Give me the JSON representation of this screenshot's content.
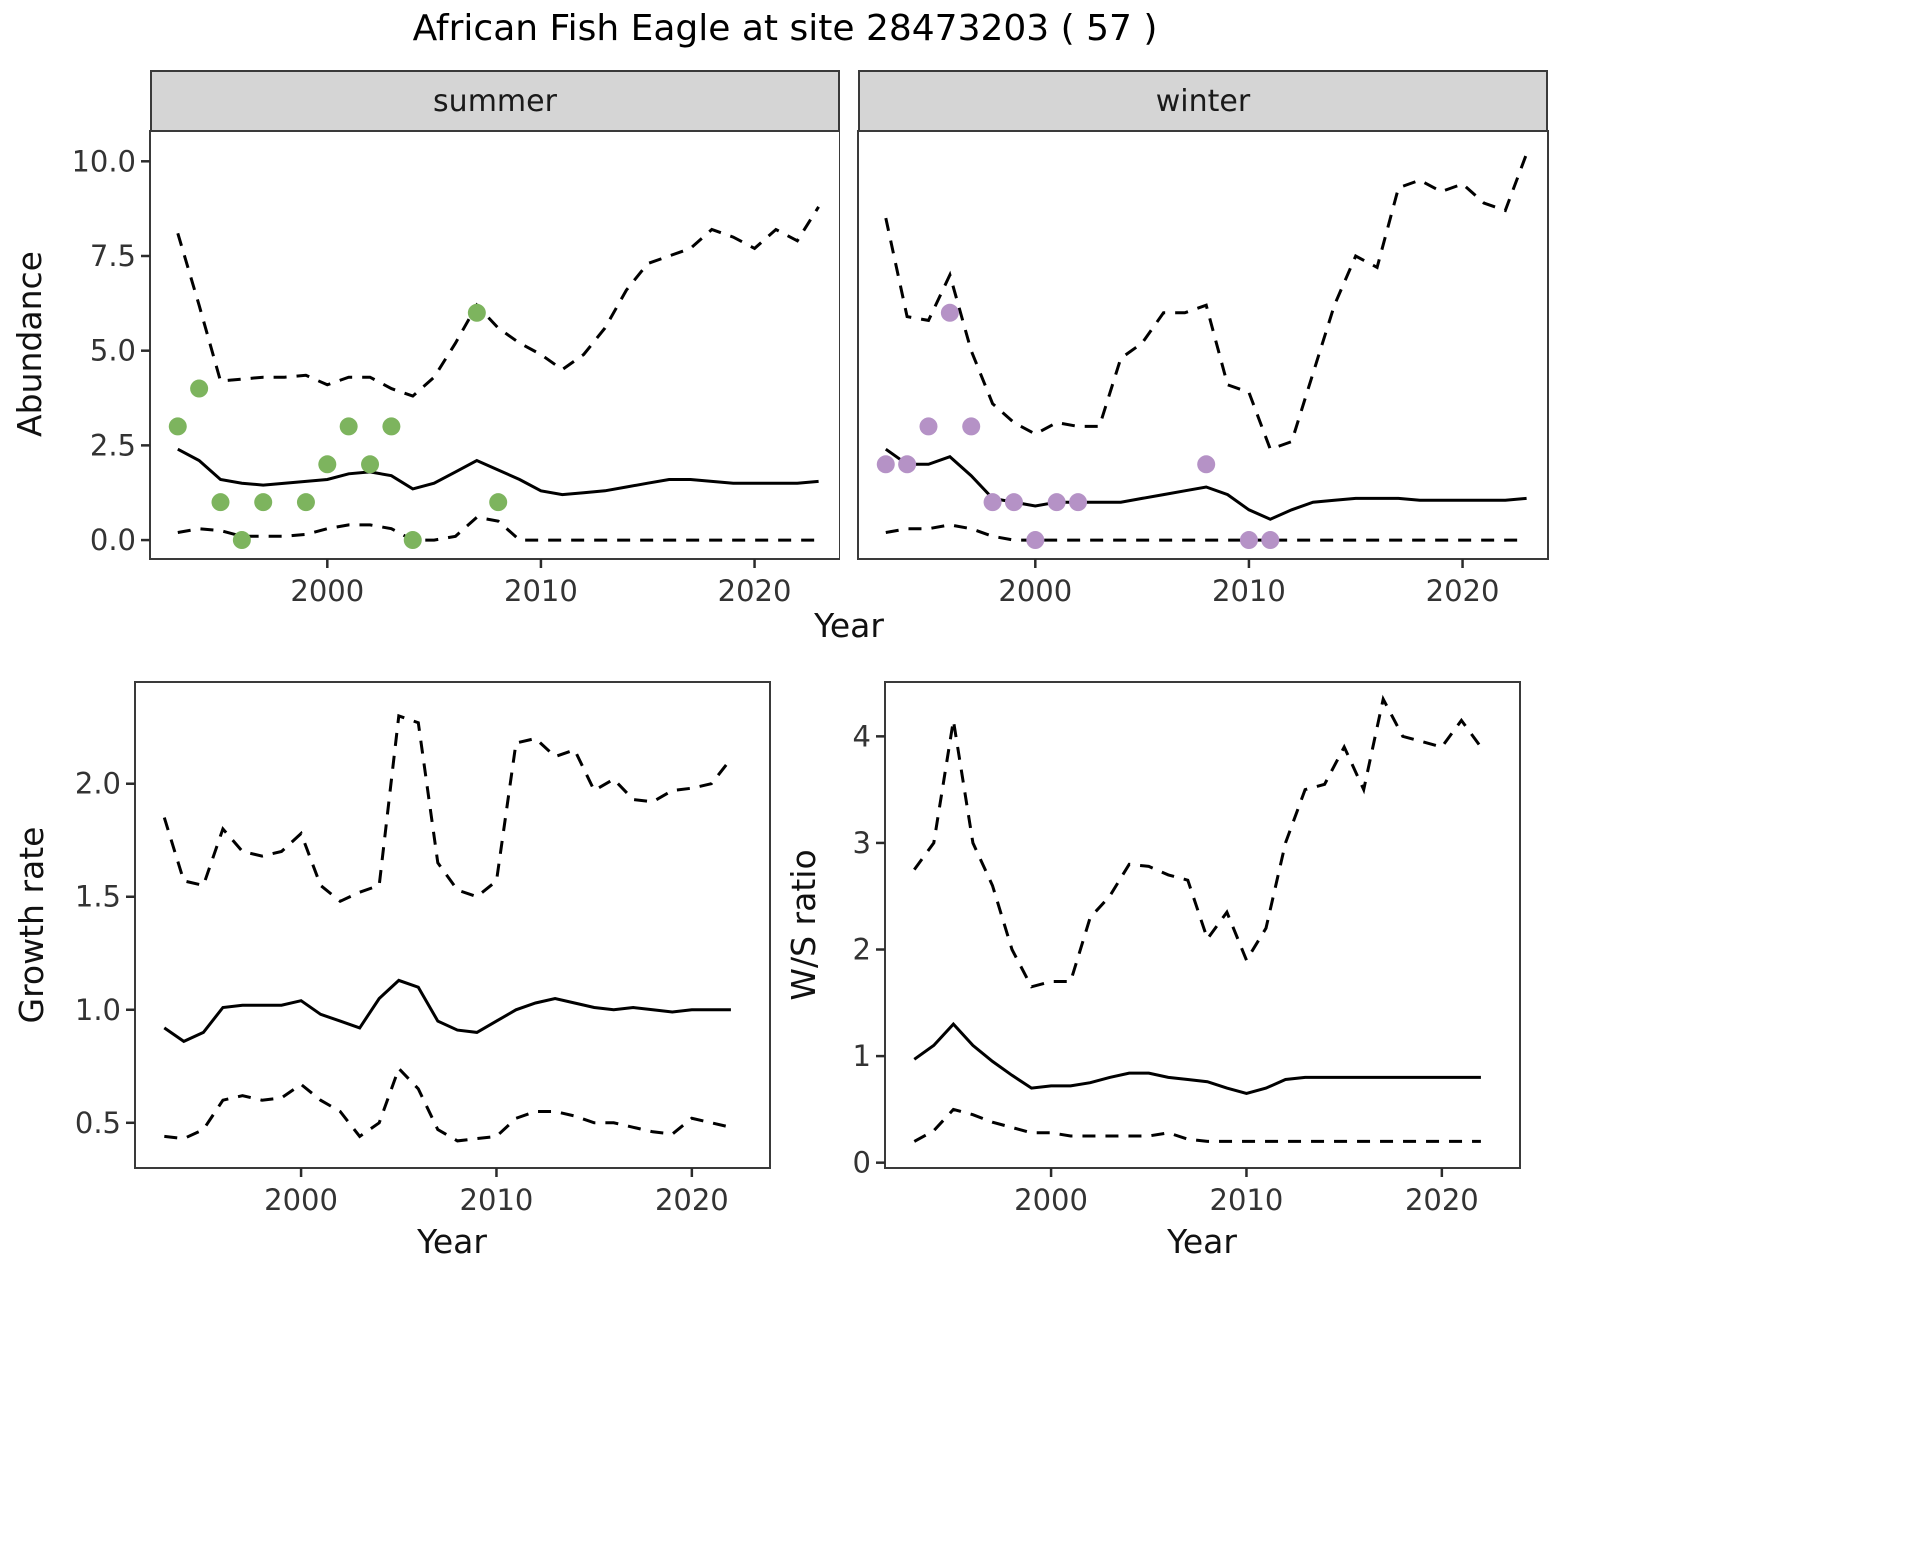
{
  "title": "African Fish Eagle at site 28473203 ( 57 )",
  "facets": {
    "summer": "summer",
    "winter": "winter"
  },
  "axes": {
    "top_x_label": "Year",
    "bottom_left_x_label": "Year",
    "bottom_right_x_label": "Year",
    "abundance_label": "Abundance",
    "growth_label": "Growth rate",
    "ws_label": "W/S ratio"
  },
  "colors": {
    "summer_points": "#7db45e",
    "winter_points": "#b592c6",
    "line": "#000000",
    "strip_bg": "#d5d5d5",
    "panel_border": "#3a3a3a",
    "tick_text": "#333333"
  },
  "chart_data": [
    {
      "id": "abundance_summer",
      "type": "line",
      "facet": "summer",
      "xlabel": "Year",
      "ylabel": "Abundance",
      "xlim": [
        1991.7,
        2024
      ],
      "ylim": [
        -0.5,
        10.8
      ],
      "x_ticks": [
        2000,
        2010,
        2020
      ],
      "x_tick_labels": [
        "2000",
        "2010",
        "2020"
      ],
      "y_ticks": [
        0,
        2.5,
        5,
        7.5,
        10
      ],
      "y_tick_labels": [
        "0.0",
        "2.5",
        "5.0",
        "7.5",
        "10.0"
      ],
      "show_y_tick_labels": true,
      "x": [
        1993,
        1994,
        1995,
        1996,
        1997,
        1998,
        1999,
        2000,
        2001,
        2002,
        2003,
        2004,
        2005,
        2006,
        2007,
        2008,
        2009,
        2010,
        2011,
        2012,
        2013,
        2014,
        2015,
        2016,
        2017,
        2018,
        2019,
        2020,
        2021,
        2022,
        2023
      ],
      "series": [
        {
          "name": "median",
          "style": "solid",
          "values": [
            2.4,
            2.1,
            1.6,
            1.5,
            1.45,
            1.5,
            1.55,
            1.6,
            1.75,
            1.8,
            1.7,
            1.35,
            1.5,
            1.8,
            2.1,
            1.85,
            1.6,
            1.3,
            1.2,
            1.25,
            1.3,
            1.4,
            1.5,
            1.6,
            1.6,
            1.55,
            1.5,
            1.5,
            1.5,
            1.5,
            1.55
          ]
        },
        {
          "name": "upper_ci",
          "style": "dashed",
          "values": [
            8.1,
            6.2,
            4.2,
            4.25,
            4.3,
            4.3,
            4.35,
            4.1,
            4.3,
            4.3,
            4.0,
            3.8,
            4.3,
            5.2,
            6.2,
            5.6,
            5.2,
            4.9,
            4.5,
            4.9,
            5.6,
            6.6,
            7.3,
            7.5,
            7.7,
            8.2,
            8.0,
            7.7,
            8.2,
            7.9,
            8.8
          ]
        },
        {
          "name": "lower_ci",
          "style": "dashed",
          "values": [
            0.2,
            0.3,
            0.25,
            0.1,
            0.1,
            0.1,
            0.15,
            0.3,
            0.4,
            0.4,
            0.3,
            0.0,
            0.0,
            0.1,
            0.6,
            0.5,
            0.0,
            0.0,
            0.0,
            0.0,
            0.0,
            0.0,
            0.0,
            0.0,
            0.0,
            0.0,
            0.0,
            0.0,
            0.0,
            0.0,
            0.0
          ]
        }
      ],
      "points": {
        "x": [
          1993,
          1994,
          1995,
          1996,
          1997,
          1999,
          2000,
          2001,
          2002,
          2003,
          2004,
          2007,
          2008
        ],
        "y": [
          3,
          4,
          1,
          0,
          1,
          1,
          2,
          3,
          2,
          3,
          0,
          6,
          1
        ],
        "color": "#7db45e"
      }
    },
    {
      "id": "abundance_winter",
      "type": "line",
      "facet": "winter",
      "xlabel": "Year",
      "ylabel": "Abundance",
      "xlim": [
        1991.7,
        2024
      ],
      "ylim": [
        -0.5,
        10.8
      ],
      "x_ticks": [
        2000,
        2010,
        2020
      ],
      "x_tick_labels": [
        "2000",
        "2010",
        "2020"
      ],
      "y_ticks": [
        0,
        2.5,
        5,
        7.5,
        10
      ],
      "y_tick_labels": [
        "0.0",
        "2.5",
        "5.0",
        "7.5",
        "10.0"
      ],
      "show_y_tick_labels": false,
      "x": [
        1993,
        1994,
        1995,
        1996,
        1997,
        1998,
        1999,
        2000,
        2001,
        2002,
        2003,
        2004,
        2005,
        2006,
        2007,
        2008,
        2009,
        2010,
        2011,
        2012,
        2013,
        2014,
        2015,
        2016,
        2017,
        2018,
        2019,
        2020,
        2021,
        2022,
        2023
      ],
      "series": [
        {
          "name": "median",
          "style": "solid",
          "values": [
            2.4,
            2.0,
            2.0,
            2.2,
            1.7,
            1.1,
            1.0,
            0.9,
            1.0,
            1.0,
            1.0,
            1.0,
            1.1,
            1.2,
            1.3,
            1.4,
            1.2,
            0.8,
            0.55,
            0.8,
            1.0,
            1.05,
            1.1,
            1.1,
            1.1,
            1.05,
            1.05,
            1.05,
            1.05,
            1.05,
            1.1
          ]
        },
        {
          "name": "upper_ci",
          "style": "dashed",
          "values": [
            8.5,
            5.9,
            5.8,
            7.0,
            5.0,
            3.6,
            3.1,
            2.8,
            3.1,
            3.0,
            3.0,
            4.8,
            5.2,
            6.0,
            6.0,
            6.2,
            4.1,
            3.9,
            2.4,
            2.6,
            4.4,
            6.2,
            7.5,
            7.2,
            9.3,
            9.5,
            9.2,
            9.4,
            8.9,
            8.7,
            10.2
          ]
        },
        {
          "name": "lower_ci",
          "style": "dashed",
          "values": [
            0.2,
            0.3,
            0.3,
            0.4,
            0.3,
            0.1,
            0.0,
            0.0,
            0.0,
            0.0,
            0.0,
            0.0,
            0.0,
            0.0,
            0.0,
            0.0,
            0.0,
            0.0,
            0.0,
            0.0,
            0.0,
            0.0,
            0.0,
            0.0,
            0.0,
            0.0,
            0.0,
            0.0,
            0.0,
            0.0,
            0.0
          ]
        }
      ],
      "points": {
        "x": [
          1993,
          1994,
          1995,
          1996,
          1997,
          1998,
          1999,
          2000,
          2001,
          2002,
          2008,
          2010,
          2011
        ],
        "y": [
          2,
          2,
          3,
          6,
          3,
          1,
          1,
          0,
          1,
          1,
          2,
          0,
          0
        ],
        "color": "#b592c6"
      }
    },
    {
      "id": "growth",
      "type": "line",
      "xlabel": "Year",
      "ylabel": "Growth rate",
      "xlim": [
        1991.5,
        2024
      ],
      "ylim": [
        0.3,
        2.45
      ],
      "x_ticks": [
        2000,
        2010,
        2020
      ],
      "x_tick_labels": [
        "2000",
        "2010",
        "2020"
      ],
      "y_ticks": [
        0.5,
        1.0,
        1.5,
        2.0
      ],
      "y_tick_labels": [
        "0.5",
        "1.0",
        "1.5",
        "2.0"
      ],
      "show_y_tick_labels": true,
      "x": [
        1993,
        1994,
        1995,
        1996,
        1997,
        1998,
        1999,
        2000,
        2001,
        2002,
        2003,
        2004,
        2005,
        2006,
        2007,
        2008,
        2009,
        2010,
        2011,
        2012,
        2013,
        2014,
        2015,
        2016,
        2017,
        2018,
        2019,
        2020,
        2021,
        2022
      ],
      "series": [
        {
          "name": "median",
          "style": "solid",
          "values": [
            0.92,
            0.86,
            0.9,
            1.01,
            1.02,
            1.02,
            1.02,
            1.04,
            0.98,
            0.95,
            0.92,
            1.05,
            1.13,
            1.1,
            0.95,
            0.91,
            0.9,
            0.95,
            1.0,
            1.03,
            1.05,
            1.03,
            1.01,
            1.0,
            1.01,
            1.0,
            0.99,
            1.0,
            1.0,
            1.0
          ]
        },
        {
          "name": "upper_ci",
          "style": "dashed",
          "values": [
            1.85,
            1.57,
            1.55,
            1.8,
            1.7,
            1.68,
            1.7,
            1.78,
            1.55,
            1.48,
            1.52,
            1.55,
            2.3,
            2.27,
            1.65,
            1.53,
            1.5,
            1.57,
            2.18,
            2.2,
            2.12,
            2.15,
            1.97,
            2.02,
            1.93,
            1.92,
            1.97,
            1.98,
            2.0,
            2.11
          ]
        },
        {
          "name": "lower_ci",
          "style": "dashed",
          "values": [
            0.44,
            0.43,
            0.47,
            0.6,
            0.62,
            0.6,
            0.61,
            0.67,
            0.6,
            0.55,
            0.44,
            0.5,
            0.74,
            0.65,
            0.47,
            0.42,
            0.43,
            0.44,
            0.52,
            0.55,
            0.55,
            0.53,
            0.5,
            0.5,
            0.48,
            0.46,
            0.45,
            0.52,
            0.5,
            0.48
          ]
        }
      ]
    },
    {
      "id": "ws",
      "type": "line",
      "xlabel": "Year",
      "ylabel": "W/S ratio",
      "xlim": [
        1991.5,
        2024
      ],
      "ylim": [
        -0.05,
        4.51
      ],
      "x_ticks": [
        2000,
        2010,
        2020
      ],
      "x_tick_labels": [
        "2000",
        "2010",
        "2020"
      ],
      "y_ticks": [
        0,
        1,
        2,
        3,
        4
      ],
      "y_tick_labels": [
        "0",
        "1",
        "2",
        "3",
        "4"
      ],
      "show_y_tick_labels": true,
      "x": [
        1993,
        1994,
        1995,
        1996,
        1997,
        1998,
        1999,
        2000,
        2001,
        2002,
        2003,
        2004,
        2005,
        2006,
        2007,
        2008,
        2009,
        2010,
        2011,
        2012,
        2013,
        2014,
        2015,
        2016,
        2017,
        2018,
        2019,
        2020,
        2021,
        2022
      ],
      "series": [
        {
          "name": "median",
          "style": "solid",
          "values": [
            0.97,
            1.1,
            1.3,
            1.1,
            0.95,
            0.82,
            0.7,
            0.72,
            0.72,
            0.75,
            0.8,
            0.84,
            0.84,
            0.8,
            0.78,
            0.76,
            0.7,
            0.65,
            0.7,
            0.78,
            0.8,
            0.8,
            0.8,
            0.8,
            0.8,
            0.8,
            0.8,
            0.8,
            0.8,
            0.8
          ]
        },
        {
          "name": "upper_ci",
          "style": "dashed",
          "values": [
            2.75,
            3.0,
            4.15,
            3.0,
            2.6,
            2.0,
            1.65,
            1.7,
            1.7,
            2.3,
            2.5,
            2.8,
            2.78,
            2.7,
            2.65,
            2.1,
            2.35,
            1.9,
            2.2,
            3.0,
            3.5,
            3.55,
            3.9,
            3.5,
            4.35,
            4.0,
            3.95,
            3.9,
            4.15,
            3.9
          ]
        },
        {
          "name": "lower_ci",
          "style": "dashed",
          "values": [
            0.2,
            0.3,
            0.5,
            0.45,
            0.38,
            0.33,
            0.28,
            0.28,
            0.25,
            0.25,
            0.25,
            0.25,
            0.25,
            0.28,
            0.22,
            0.2,
            0.2,
            0.2,
            0.2,
            0.2,
            0.2,
            0.2,
            0.2,
            0.2,
            0.2,
            0.2,
            0.2,
            0.2,
            0.2,
            0.2
          ]
        }
      ]
    }
  ]
}
